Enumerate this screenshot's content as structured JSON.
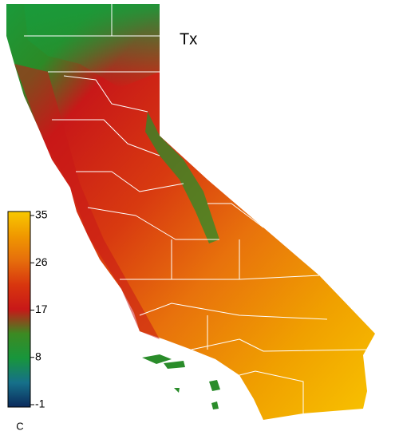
{
  "map": {
    "title": "Tx",
    "colorbar": {
      "unit": "C",
      "range": [
        -1,
        35
      ],
      "ticks": [
        -1,
        8,
        17,
        26,
        35
      ],
      "colors": [
        "#0b2a5c",
        "#16708a",
        "#18963c",
        "#3c8a22",
        "#c81818",
        "#d8360e",
        "#e66e0c",
        "#f09800",
        "#f8c800"
      ]
    }
  }
}
